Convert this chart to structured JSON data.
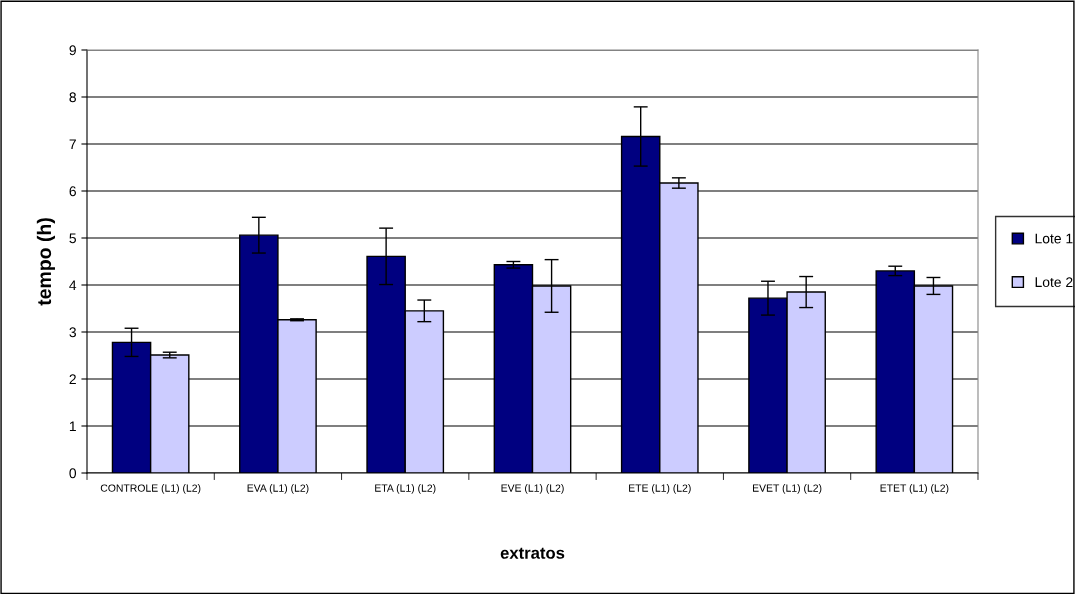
{
  "chart_data": {
    "type": "bar",
    "xlabel": "extratos",
    "ylabel": "tempo (h)",
    "categories": [
      "CONTROLE (L1) (L2)",
      "EVA (L1) (L2)",
      "ETA (L1) (L2)",
      "EVE (L1) (L2)",
      "ETE (L1) (L2)",
      "EVET (L1) (L2)",
      "ETET (L1) (L2)"
    ],
    "series": [
      {
        "name": "Lote 1",
        "color": "#000080",
        "values": [
          2.78,
          5.06,
          4.61,
          4.43,
          7.16,
          3.72,
          4.3
        ],
        "errors": [
          0.3,
          0.38,
          0.6,
          0.07,
          0.63,
          0.36,
          0.1
        ]
      },
      {
        "name": "Lote 2",
        "color": "#ccccff",
        "values": [
          2.51,
          3.26,
          3.45,
          3.98,
          6.17,
          3.85,
          3.98
        ],
        "errors": [
          0.06,
          0.02,
          0.23,
          0.56,
          0.11,
          0.33,
          0.18
        ]
      }
    ],
    "ylim": [
      0,
      9
    ],
    "yticks": [
      0,
      1,
      2,
      3,
      4,
      5,
      6,
      7,
      8,
      9
    ],
    "grid": "y",
    "legend": "right"
  }
}
